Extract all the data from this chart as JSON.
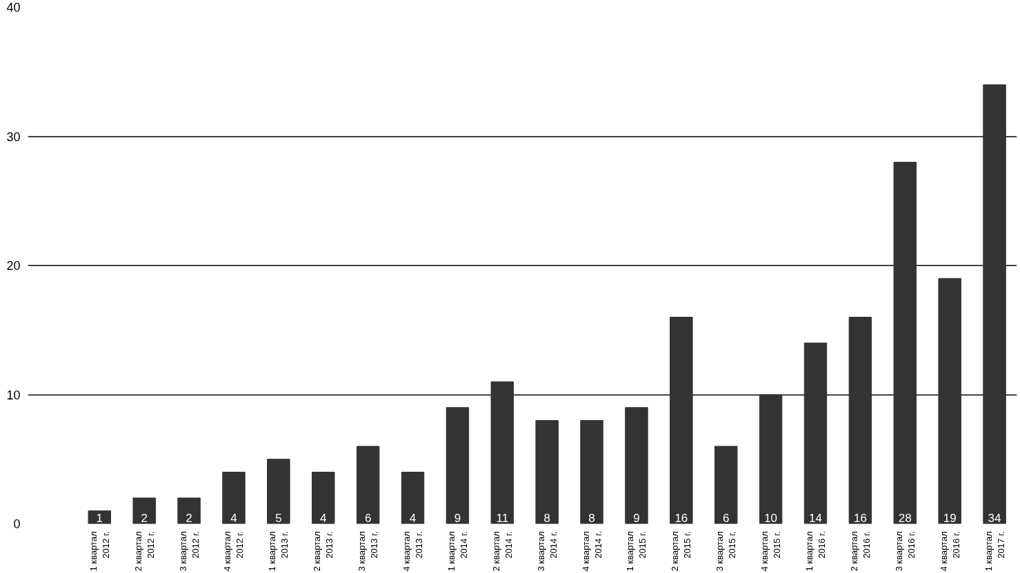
{
  "chart_data": {
    "type": "bar",
    "categories": [
      "1 квартал\n2012 г.",
      "2 квартал\n2012 г.",
      "3 квартал\n2012 г.",
      "4 квартал\n2012 г.",
      "1 квартал\n2013 г.",
      "2 квартал\n2013 г.",
      "3 квартал\n2013 г.",
      "4 квартал\n2013 г.",
      "1 квартал\n2014 г.",
      "2 квартал\n2014 г.",
      "3 квартал\n2014 г.",
      "4 квартал\n2014 г.",
      "1 квартал\n2015 г.",
      "2 квартал\n2015 г.",
      "3 квартал\n2015 г.",
      "4 квартал\n2015 г.",
      "1 квартал\n2016 г.",
      "2 квартал\n2016 г.",
      "3 квартал\n2016 г.",
      "4 квартал\n2016 г.",
      "1 квартал\n2017 г."
    ],
    "values": [
      1,
      2,
      2,
      4,
      5,
      4,
      6,
      4,
      9,
      11,
      8,
      8,
      9,
      16,
      6,
      10,
      14,
      16,
      28,
      19,
      34
    ],
    "color": "#333333",
    "ylim": [
      0,
      40
    ],
    "yticks": [
      0,
      10,
      20,
      30,
      40
    ],
    "grid": "y",
    "data_labels": true
  }
}
